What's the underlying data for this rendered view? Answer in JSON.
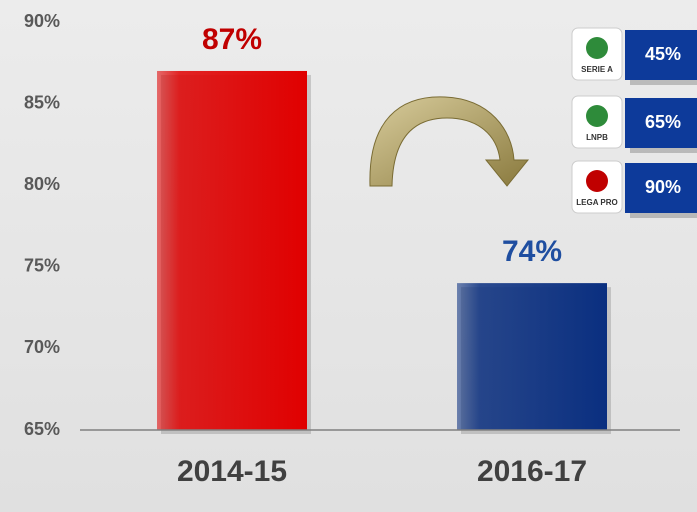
{
  "chart_data": {
    "type": "bar",
    "categories": [
      "2014-15",
      "2016-17"
    ],
    "values": [
      87,
      74
    ],
    "value_labels": [
      "87%",
      "74%"
    ],
    "colors": [
      "#e00000",
      "#0a2f80"
    ],
    "label_colors": [
      "#c00000",
      "#1f4ea0"
    ],
    "ylim": [
      65,
      90
    ],
    "yticks": [
      {
        "value": 65,
        "label": "65%"
      },
      {
        "value": 70,
        "label": "70%"
      },
      {
        "value": 75,
        "label": "75%"
      },
      {
        "value": 80,
        "label": "80%"
      },
      {
        "value": 85,
        "label": "85%"
      },
      {
        "value": 90,
        "label": "90%"
      }
    ]
  },
  "leagues": [
    {
      "logo": "SERIE A",
      "value": "45%"
    },
    {
      "logo": "LNPB",
      "value": "65%"
    },
    {
      "logo": "LEGA PRO",
      "value": "90%"
    }
  ]
}
